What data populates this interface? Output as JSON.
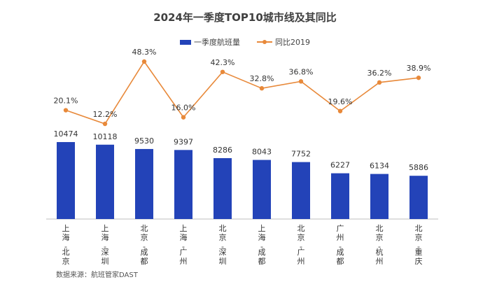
{
  "chart_data": {
    "type": "bar",
    "title": "2024年一季度TOP10城市线及其同比",
    "categories": [
      "上海-北京",
      "上海-深圳",
      "北京-成都",
      "上海-广州",
      "北京-深圳",
      "上海-成都",
      "北京-广州",
      "广州-成都",
      "北京-杭州",
      "北京-重庆"
    ],
    "series": [
      {
        "name": "一季度航班量",
        "type": "bar",
        "color": "#2343B8",
        "values": [
          10474,
          10118,
          9530,
          9397,
          8286,
          8043,
          7752,
          6227,
          6134,
          5886
        ],
        "labels": [
          "10474",
          "10118",
          "9530",
          "9397",
          "8286",
          "8043",
          "7752",
          "6227",
          "6134",
          "5886"
        ]
      },
      {
        "name": "同比2019",
        "type": "line",
        "color": "#E8893A",
        "values": [
          20.1,
          12.2,
          48.3,
          16.0,
          42.3,
          32.8,
          36.8,
          19.6,
          36.2,
          38.9
        ],
        "labels": [
          "20.1%",
          "12.2%",
          "48.3%",
          "16.0%",
          "42.3%",
          "32.8%",
          "36.8%",
          "19.6%",
          "36.2%",
          "38.9%"
        ]
      }
    ],
    "legend_position": "top-center",
    "grid": false
  },
  "source_note": "数据来源：航班管家DAST"
}
